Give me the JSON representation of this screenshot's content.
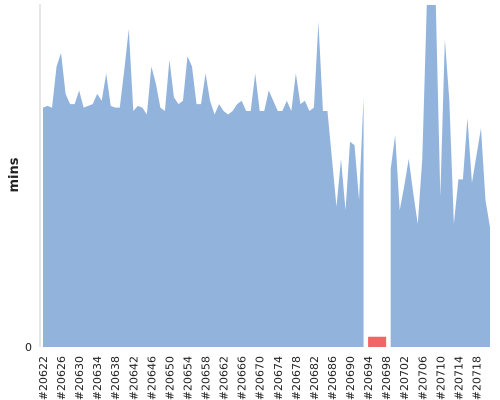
{
  "chart_data": {
    "type": "area",
    "y_label": "mins",
    "categories": [
      "#20622",
      null,
      null,
      null,
      "#20626",
      null,
      null,
      null,
      "#20630",
      null,
      null,
      null,
      "#20634",
      null,
      null,
      null,
      "#20638",
      null,
      null,
      null,
      "#20642",
      null,
      null,
      null,
      "#20646",
      null,
      null,
      null,
      "#20650",
      null,
      null,
      null,
      "#20654",
      null,
      null,
      null,
      "#20658",
      null,
      null,
      null,
      "#20662",
      null,
      null,
      null,
      "#20666",
      null,
      null,
      null,
      "#20670",
      null,
      null,
      null,
      "#20674",
      null,
      null,
      null,
      "#20678",
      null,
      null,
      null,
      "#20682",
      null,
      null,
      null,
      "#20686",
      null,
      null,
      null,
      "#20690",
      null,
      null,
      null,
      "#20694",
      null,
      null,
      null,
      "#20698",
      null,
      null,
      null,
      "#20702",
      null,
      null,
      null,
      "#20706",
      null,
      null,
      null,
      "#20710",
      null,
      null,
      null,
      "#20714",
      null,
      null,
      null,
      "#20718",
      null,
      null,
      null
    ],
    "series": [
      {
        "color": "#92b4dc",
        "values": [
          70,
          70.5,
          70,
          82,
          86,
          74,
          71,
          71,
          75,
          70,
          70.5,
          71,
          74,
          72,
          80,
          70.5,
          70,
          70,
          81,
          93,
          69,
          70.5,
          70,
          68,
          82,
          77,
          70,
          69,
          84,
          73,
          71,
          72,
          85,
          82,
          71,
          71,
          80,
          72,
          68,
          71,
          69,
          68,
          69,
          71,
          72,
          69,
          69,
          80,
          69,
          69,
          75,
          72,
          69,
          69,
          72,
          69,
          80,
          71,
          72,
          69,
          70,
          95,
          69,
          69,
          55,
          41,
          55,
          40,
          60,
          59,
          43,
          73,
          null,
          null,
          null,
          null,
          null,
          52,
          62,
          40,
          47,
          55,
          45,
          36,
          55,
          100,
          100,
          100,
          44,
          90,
          72,
          36,
          49,
          49,
          67,
          48,
          56,
          64,
          43,
          35
        ]
      },
      {
        "color": "#ee6666",
        "values": [
          null,
          null,
          null,
          null,
          null,
          null,
          null,
          null,
          null,
          null,
          null,
          null,
          null,
          null,
          null,
          null,
          null,
          null,
          null,
          null,
          null,
          null,
          null,
          null,
          null,
          null,
          null,
          null,
          null,
          null,
          null,
          null,
          null,
          null,
          null,
          null,
          null,
          null,
          null,
          null,
          null,
          null,
          null,
          null,
          null,
          null,
          null,
          null,
          null,
          null,
          null,
          null,
          null,
          null,
          null,
          null,
          null,
          null,
          null,
          null,
          null,
          null,
          null,
          null,
          null,
          null,
          null,
          null,
          null,
          null,
          null,
          null,
          3,
          3,
          3,
          3,
          3,
          null,
          null,
          null,
          null,
          null,
          null,
          null,
          null,
          null,
          null,
          null,
          null,
          null,
          null,
          null,
          null,
          null,
          null,
          null,
          null,
          null,
          null,
          null
        ]
      }
    ],
    "ylim": [
      0,
      100
    ],
    "yticks": [
      0
    ]
  }
}
